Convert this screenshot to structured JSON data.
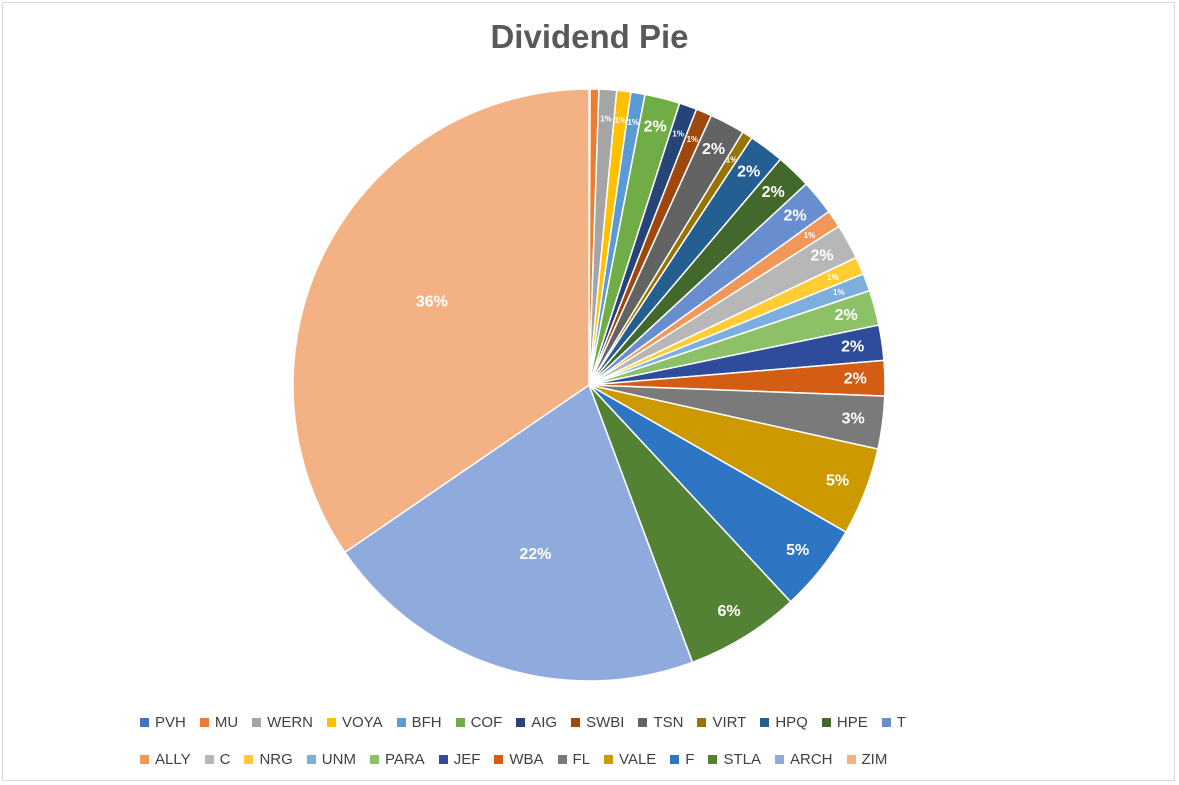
{
  "chart_data": {
    "type": "pie",
    "title": "Dividend Pie",
    "legend_position": "bottom",
    "slices": [
      {
        "name": "PVH",
        "value": 0.06,
        "label": "",
        "color": "#4472C4"
      },
      {
        "name": "MU",
        "value": 0.5,
        "label": "",
        "color": "#ED7D31"
      },
      {
        "name": "WERN",
        "value": 1.0,
        "label": "1%",
        "color": "#A5A5A5"
      },
      {
        "name": "VOYA",
        "value": 0.8,
        "label": "1%",
        "color": "#FFC000"
      },
      {
        "name": "BFH",
        "value": 0.8,
        "label": "1%",
        "color": "#5B9BD5"
      },
      {
        "name": "COF",
        "value": 2.0,
        "label": "2%",
        "color": "#70AD47"
      },
      {
        "name": "AIG",
        "value": 1.0,
        "label": "1%",
        "color": "#264478"
      },
      {
        "name": "SWBI",
        "value": 0.9,
        "label": "1%",
        "color": "#9E480E"
      },
      {
        "name": "TSN",
        "value": 2.0,
        "label": "2%",
        "color": "#636363"
      },
      {
        "name": "VIRT",
        "value": 0.6,
        "label": "1%",
        "color": "#997300"
      },
      {
        "name": "HPQ",
        "value": 2.0,
        "label": "2%",
        "color": "#255E91"
      },
      {
        "name": "HPE",
        "value": 2.0,
        "label": "2%",
        "color": "#43682B"
      },
      {
        "name": "T",
        "value": 2.0,
        "label": "2%",
        "color": "#698ED0"
      },
      {
        "name": "ALLY",
        "value": 1.0,
        "label": "1%",
        "color": "#F1975A"
      },
      {
        "name": "C",
        "value": 2.0,
        "label": "2%",
        "color": "#B7B7B7"
      },
      {
        "name": "NRG",
        "value": 1.0,
        "label": "1%",
        "color": "#FFCD33"
      },
      {
        "name": "UNM",
        "value": 1.0,
        "label": "1%",
        "color": "#7CAFDD"
      },
      {
        "name": "PARA",
        "value": 2.0,
        "label": "2%",
        "color": "#8CC168"
      },
      {
        "name": "JEF",
        "value": 2.0,
        "label": "2%",
        "color": "#2F4B9B"
      },
      {
        "name": "WBA",
        "value": 2.0,
        "label": "2%",
        "color": "#D35E13"
      },
      {
        "name": "FL",
        "value": 3.0,
        "label": "3%",
        "color": "#7A7A7A"
      },
      {
        "name": "VALE",
        "value": 5.0,
        "label": "5%",
        "color": "#CC9A00"
      },
      {
        "name": "F",
        "value": 5.0,
        "label": "5%",
        "color": "#2E75C4"
      },
      {
        "name": "STLA",
        "value": 6.5,
        "label": "6%",
        "color": "#548235"
      },
      {
        "name": "ARCH",
        "value": 22.0,
        "label": "22%",
        "color": "#8FAADC"
      },
      {
        "name": "ZIM",
        "value": 36.0,
        "label": "36%",
        "color": "#F4B183"
      }
    ]
  }
}
